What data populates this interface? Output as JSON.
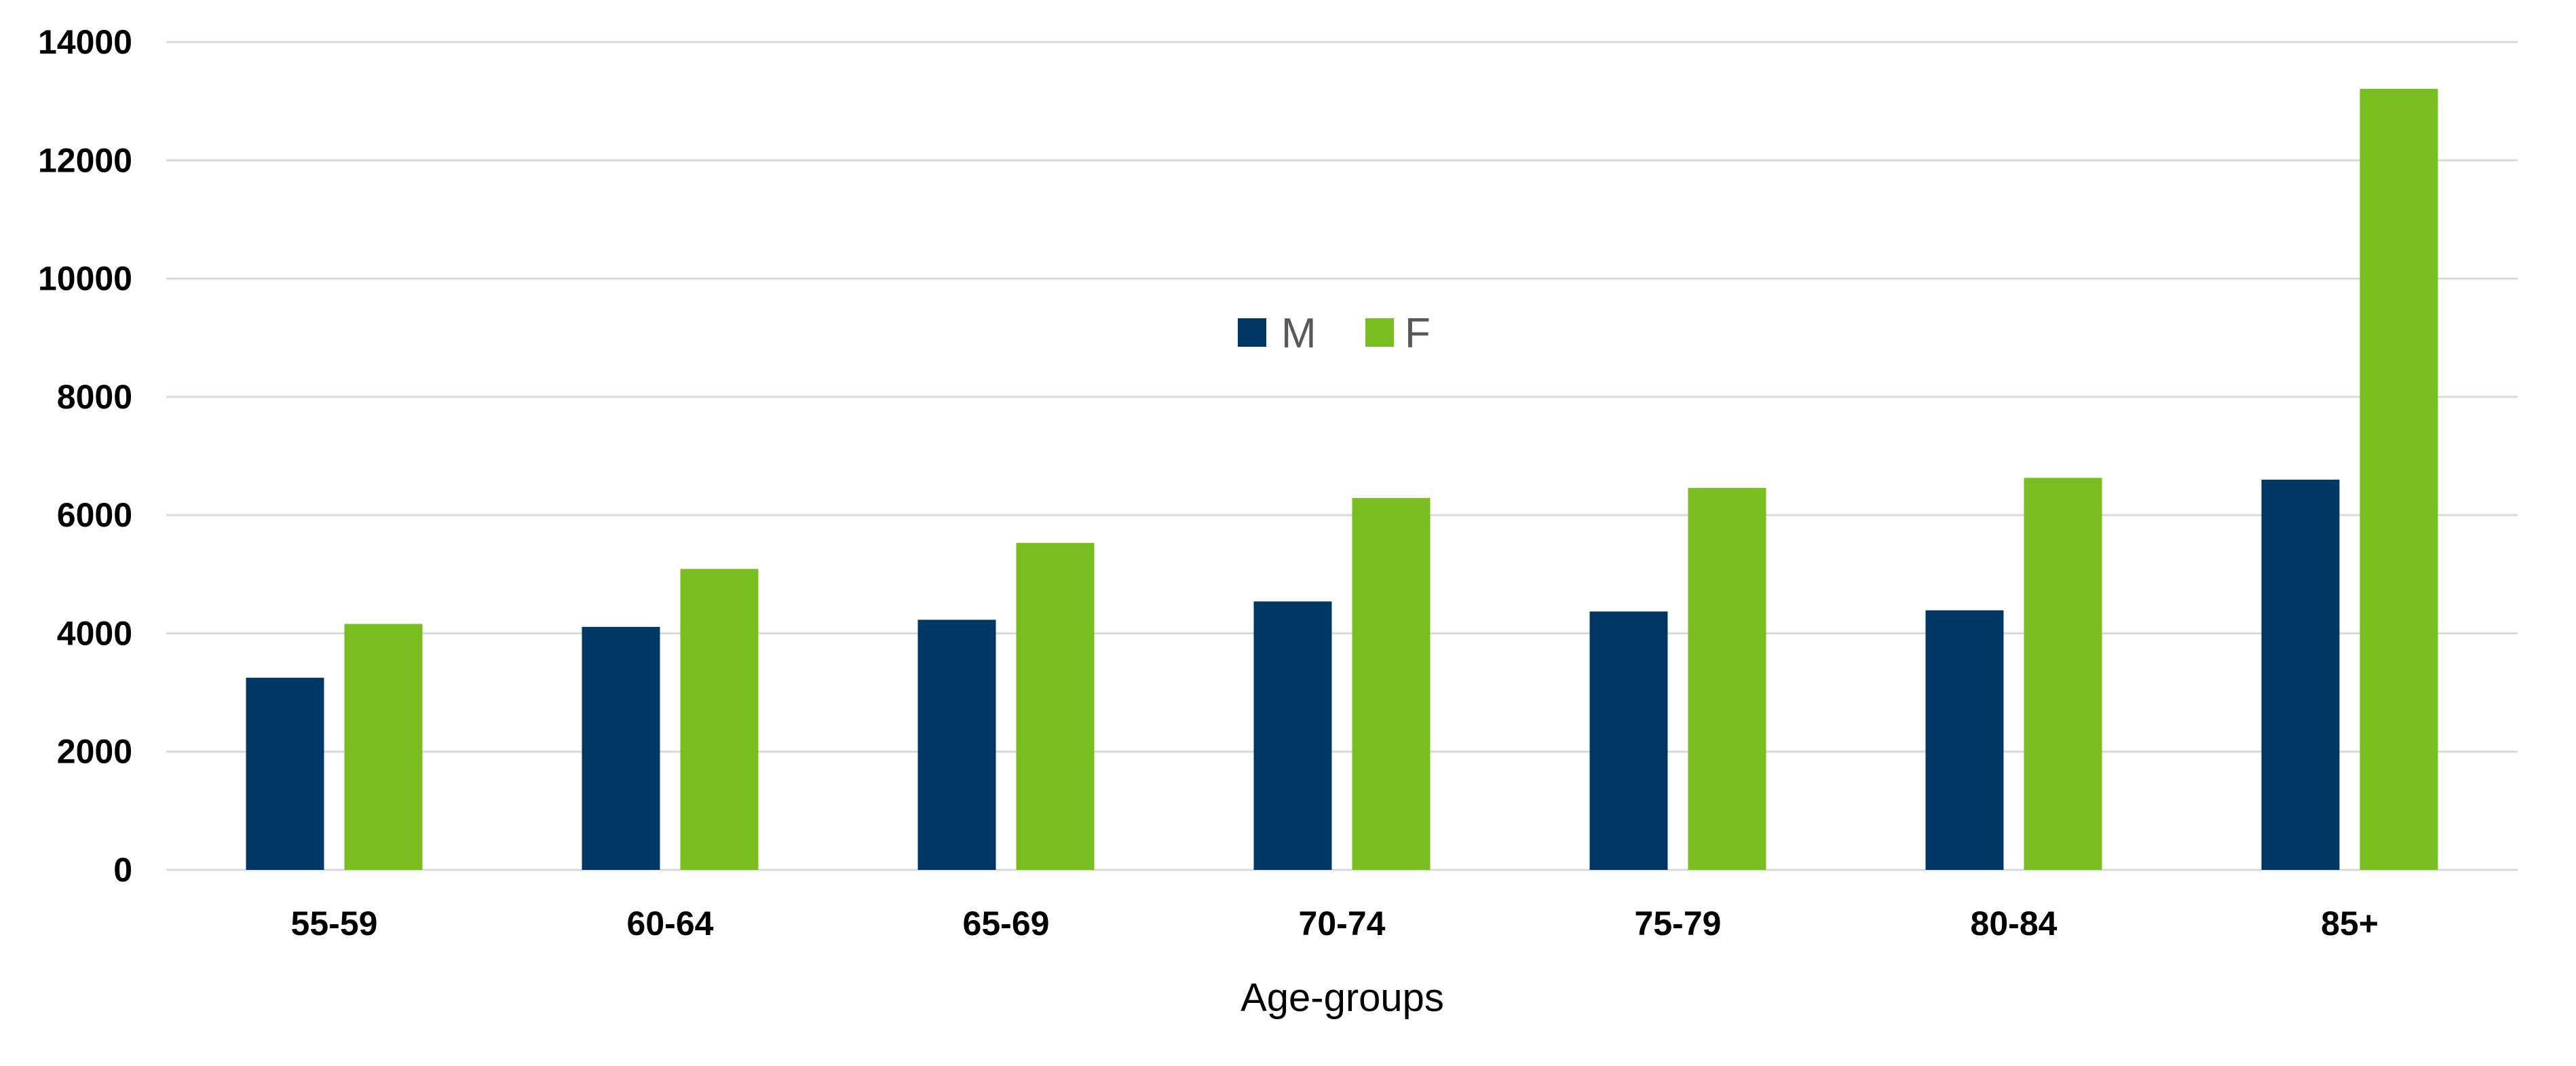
{
  "chart_data": {
    "type": "bar",
    "xlabel": "Age-groups",
    "ylabel": "",
    "ylim": [
      0,
      14000
    ],
    "yticks": [
      0,
      2000,
      4000,
      6000,
      8000,
      10000,
      12000,
      14000
    ],
    "grid": true,
    "legend_position": "top-center",
    "categories": [
      "55-59",
      "60-64",
      "65-69",
      "70-74",
      "75-79",
      "80-84",
      "85+"
    ],
    "series": [
      {
        "name": "M",
        "color": "#003865",
        "values": [
          3250,
          4110,
          4230,
          4540,
          4370,
          4390,
          6600
        ]
      },
      {
        "name": "F",
        "color": "#78be20",
        "values": [
          4160,
          5090,
          5530,
          6290,
          6460,
          6630,
          13210
        ]
      }
    ]
  }
}
